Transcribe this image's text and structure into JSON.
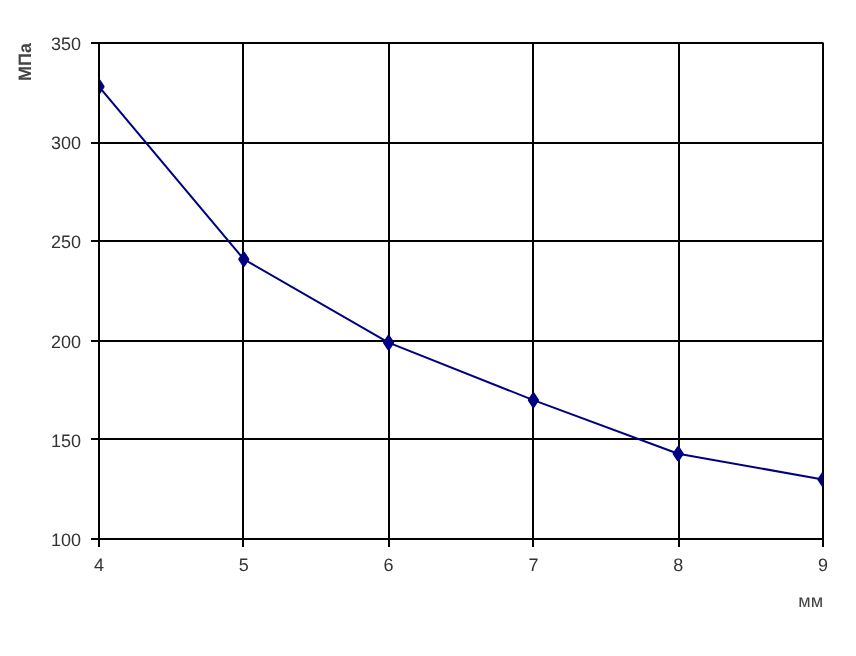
{
  "chart_data": {
    "type": "line",
    "xlabel": "мм",
    "ylabel": "МПа",
    "x": [
      4,
      5,
      6,
      7,
      8,
      9
    ],
    "series": [
      {
        "color": "#000080",
        "values": [
          328,
          241,
          199,
          170,
          143,
          130
        ]
      }
    ],
    "xlim": [
      4,
      9
    ],
    "ylim": [
      100,
      350
    ],
    "xticks": [
      4,
      5,
      6,
      7,
      8,
      9
    ],
    "yticks": [
      100,
      150,
      200,
      250,
      300,
      350
    ],
    "grid": true,
    "marker": "diamond",
    "line_style": "solid"
  }
}
